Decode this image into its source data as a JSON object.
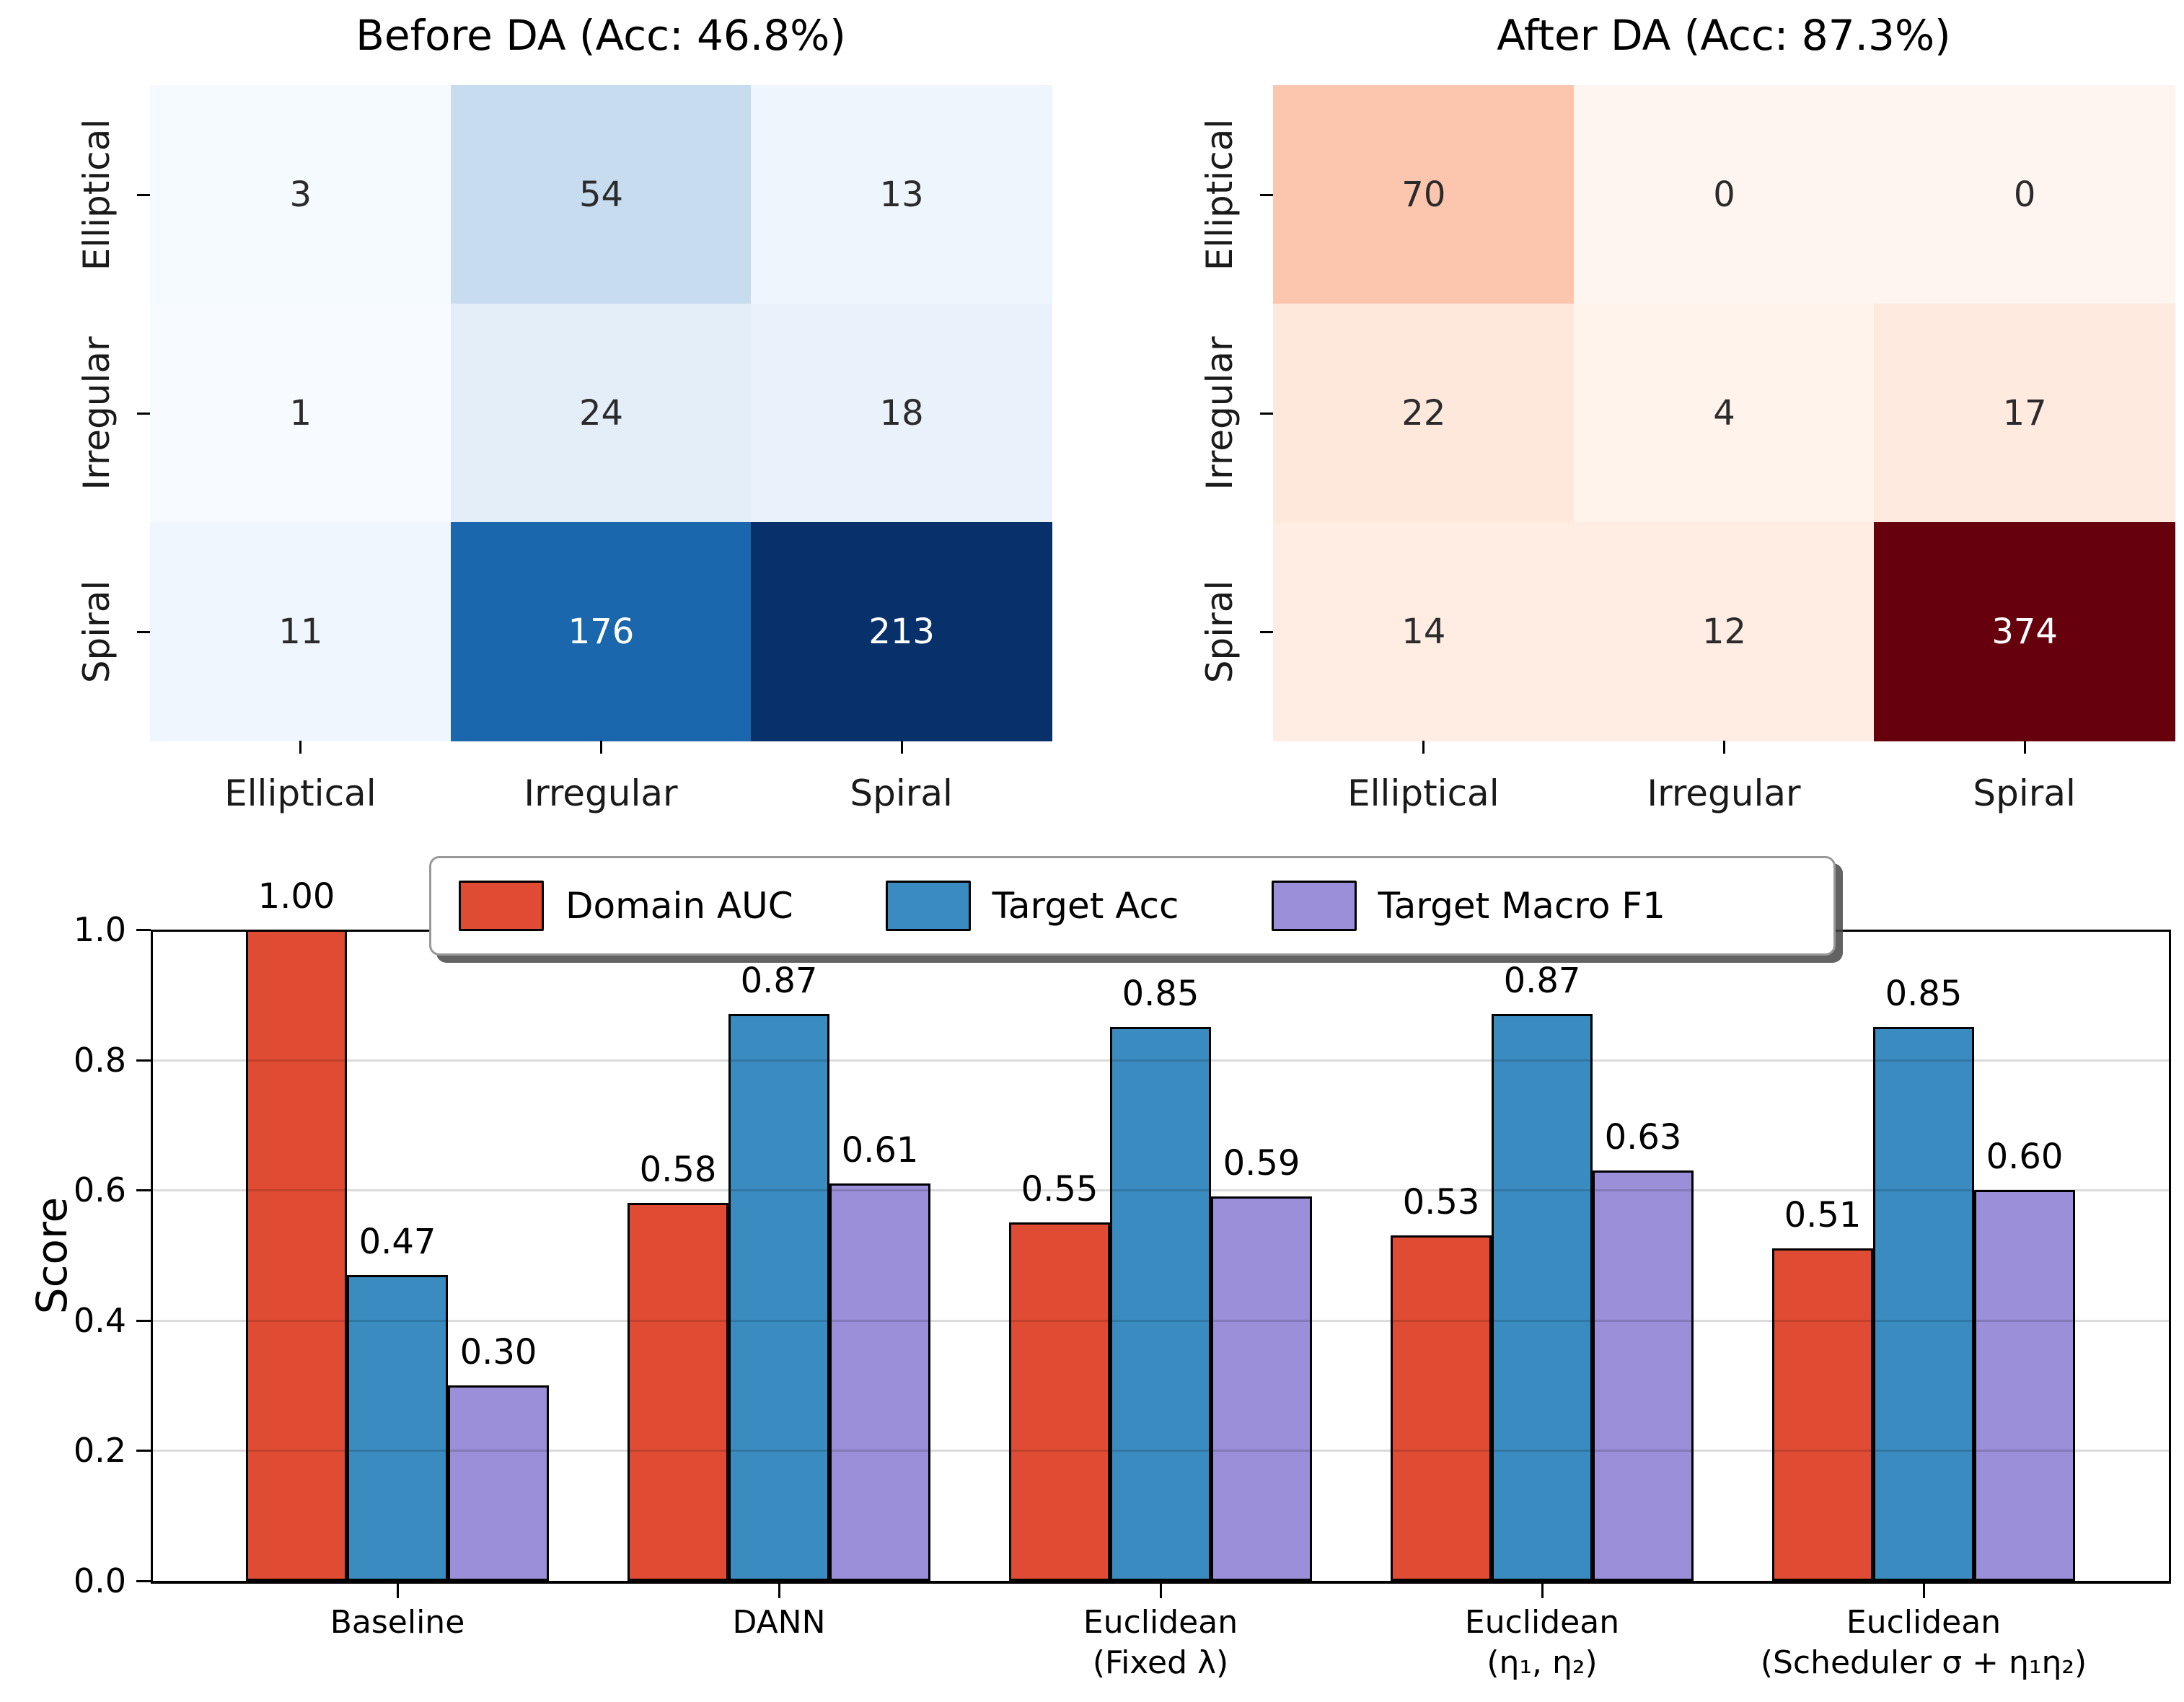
{
  "figure_bg": "#ffffff",
  "series_colors": {
    "domain_auc": "#e04b33",
    "target_acc": "#3a8bbf",
    "target_macro_f1": "#9a8fd8"
  },
  "chart_data": [
    {
      "type": "heatmap",
      "title": "Before DA (Acc: 46.8%)",
      "colormap": "Blues",
      "x_categories": [
        "Elliptical",
        "Irregular",
        "Spiral"
      ],
      "y_categories": [
        "Elliptical",
        "Irregular",
        "Spiral"
      ],
      "values": [
        [
          3,
          54,
          13
        ],
        [
          1,
          24,
          18
        ],
        [
          11,
          176,
          213
        ]
      ],
      "cell_colors": [
        [
          "#f5fafe",
          "#c7dcef",
          "#eef5fc"
        ],
        [
          "#f7fbff",
          "#e3eef9",
          "#e9f2fb"
        ],
        [
          "#f0f6fd",
          "#1a67ad",
          "#08306b"
        ]
      ],
      "cell_text_colors": [
        [
          "#2b2b2b",
          "#2b2b2b",
          "#2b2b2b"
        ],
        [
          "#2b2b2b",
          "#2b2b2b",
          "#2b2b2b"
        ],
        [
          "#2b2b2b",
          "#ffffff",
          "#ffffff"
        ]
      ]
    },
    {
      "type": "heatmap",
      "title": "After DA (Acc: 87.3%)",
      "colormap": "Reds",
      "x_categories": [
        "Elliptical",
        "Irregular",
        "Spiral"
      ],
      "y_categories": [
        "Elliptical",
        "Irregular",
        "Spiral"
      ],
      "values": [
        [
          70,
          0,
          0
        ],
        [
          22,
          4,
          17
        ],
        [
          14,
          12,
          374
        ]
      ],
      "cell_colors": [
        [
          "#fcc5ad",
          "#fff5f0",
          "#fff5f0"
        ],
        [
          "#fee8dc",
          "#fff3ec",
          "#feeadf"
        ],
        [
          "#ffece2",
          "#ffede3",
          "#67000d"
        ]
      ],
      "cell_text_colors": [
        [
          "#2b2b2b",
          "#2b2b2b",
          "#2b2b2b"
        ],
        [
          "#2b2b2b",
          "#2b2b2b",
          "#2b2b2b"
        ],
        [
          "#2b2b2b",
          "#2b2b2b",
          "#ffffff"
        ]
      ]
    },
    {
      "type": "bar",
      "ylabel": "Score",
      "ylim": [
        0.0,
        1.0
      ],
      "yticks": [
        0.0,
        0.2,
        0.4,
        0.6,
        0.8,
        1.0
      ],
      "ytick_labels": [
        "0.0",
        "0.2",
        "0.4",
        "0.6",
        "0.8",
        "1.0"
      ],
      "grid": true,
      "legend_position": "upper center",
      "categories": [
        "Baseline",
        "DANN",
        "Euclidean\n(Fixed λ)",
        "Euclidean\n(η₁, η₂)",
        "Euclidean\n(Scheduler σ + η₁η₂)"
      ],
      "series": [
        {
          "name": "Domain AUC",
          "color": "#e04b33",
          "values": [
            1.0,
            0.58,
            0.55,
            0.53,
            0.51
          ]
        },
        {
          "name": "Target Acc",
          "color": "#3a8bbf",
          "values": [
            0.47,
            0.87,
            0.85,
            0.87,
            0.85
          ]
        },
        {
          "name": "Target Macro F1",
          "color": "#9a8fd8",
          "values": [
            0.3,
            0.61,
            0.59,
            0.63,
            0.6
          ]
        }
      ],
      "bar_labels": [
        [
          "1.00",
          "0.47",
          "0.30"
        ],
        [
          "0.58",
          "0.87",
          "0.61"
        ],
        [
          "0.55",
          "0.85",
          "0.59"
        ],
        [
          "0.53",
          "0.87",
          "0.63"
        ],
        [
          "0.51",
          "0.85",
          "0.60"
        ]
      ]
    }
  ]
}
